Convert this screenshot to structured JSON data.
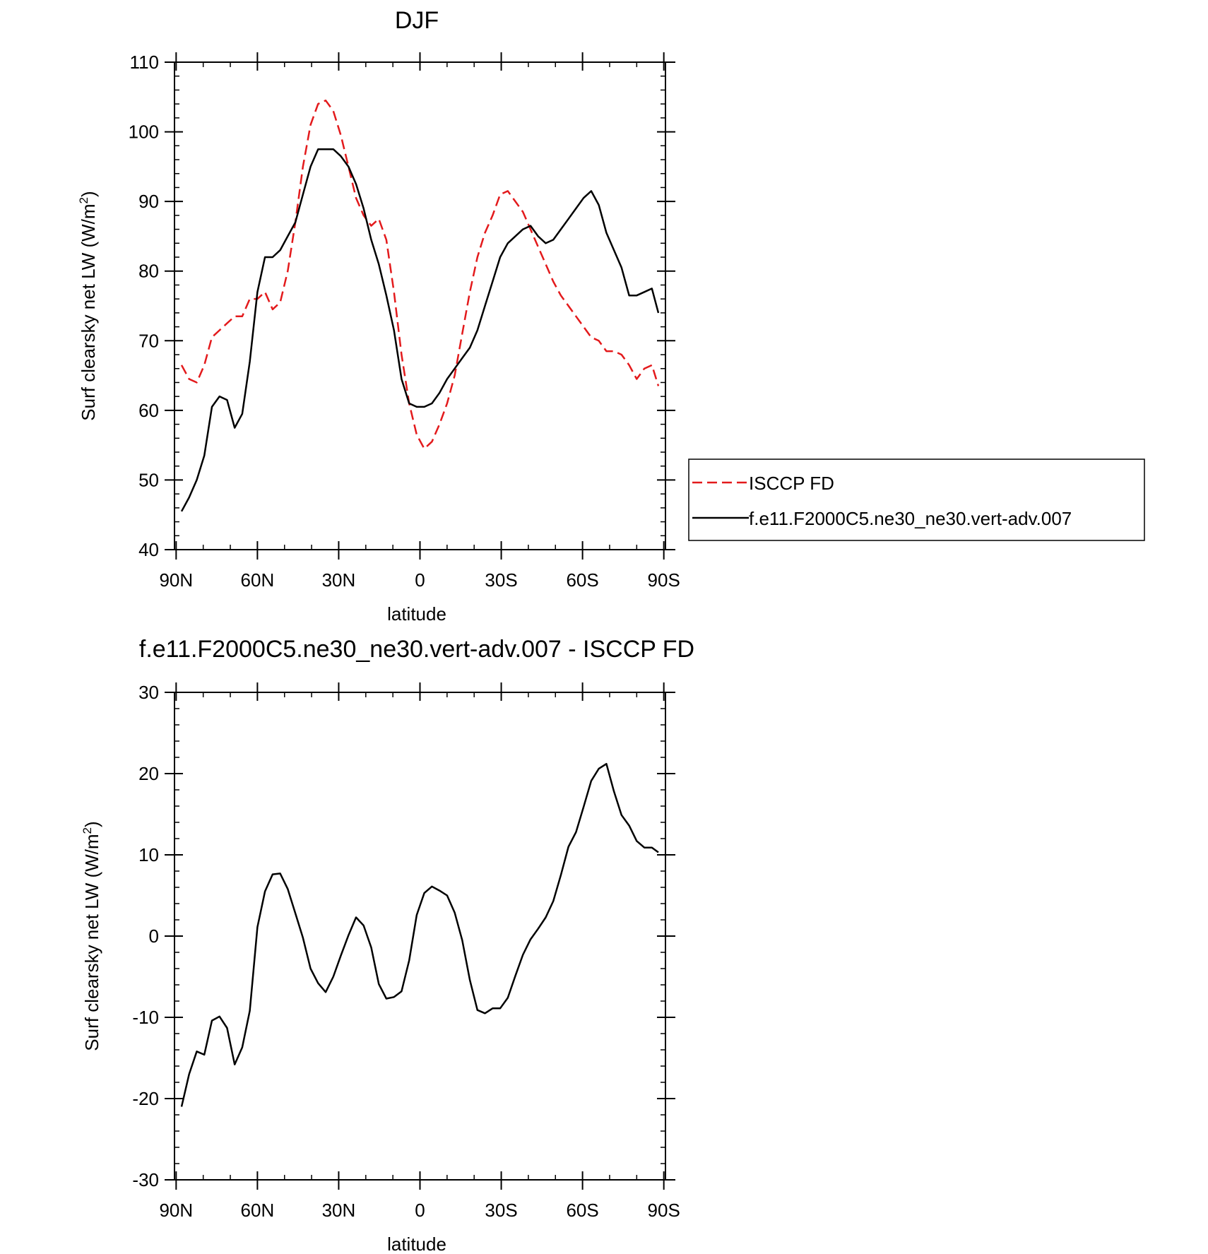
{
  "chart_data": [
    {
      "type": "line",
      "title": "DJF",
      "xlabel": "latitude",
      "ylabel": "Surf clearsky net LW (W/m",
      "ylabel_superscript": "2",
      "ylabel_suffix": ")",
      "xlim": [
        -88,
        88
      ],
      "ylim": [
        40,
        110
      ],
      "yticks": [
        40,
        50,
        60,
        70,
        80,
        90,
        100,
        110
      ],
      "xticks": [
        -90,
        -60,
        -30,
        0,
        30,
        60,
        90
      ],
      "xtick_labels": [
        "90N",
        "60N",
        "30N",
        "0",
        "30S",
        "60S",
        "90S"
      ],
      "legend": {
        "placement": "right",
        "entries": [
          "ISCCP FD",
          "f.e11.F2000C5.ne30_ne30.vert-adv.007"
        ]
      },
      "series": [
        {
          "name": "ISCCP FD",
          "color": "#e31a1c",
          "style": "dashed",
          "x": [
            -88,
            -85.2,
            -82.4,
            -79.6,
            -76.8,
            -74,
            -71.2,
            -68.4,
            -65.6,
            -62.8,
            -60,
            -57.2,
            -54.4,
            -51.6,
            -48.8,
            -46,
            -43.2,
            -40.4,
            -37.6,
            -34.8,
            -32,
            -29.2,
            -26.4,
            -23.6,
            -20.8,
            -18,
            -15.2,
            -12.4,
            -9.6,
            -6.8,
            -4,
            -1.2,
            1.6,
            4.4,
            7.2,
            10,
            12.8,
            15.6,
            18.4,
            21.2,
            24,
            26.8,
            29.6,
            32.4,
            35.2,
            38,
            40.8,
            43.6,
            46.4,
            49.2,
            52,
            54.8,
            57.6,
            60.4,
            63.2,
            66,
            68.8,
            71.6,
            74.4,
            77.2,
            80,
            82.8,
            85.6,
            88
          ],
          "y": [
            66.5,
            64.5,
            64,
            66.5,
            70.5,
            71.5,
            72.5,
            73.5,
            73.5,
            76,
            76,
            77,
            74.5,
            75.5,
            80,
            87,
            95,
            101,
            104,
            104.5,
            103,
            99.5,
            95,
            90.5,
            88,
            86.5,
            87.5,
            84.5,
            77,
            68,
            61,
            56.5,
            54.5,
            55.5,
            58,
            61,
            65,
            71,
            77,
            82,
            85.5,
            88,
            91,
            91.5,
            90,
            88.5,
            86,
            83.5,
            81,
            78.5,
            76.5,
            75,
            73.5,
            72,
            70.5,
            70,
            68.5,
            68.5,
            68,
            66.5,
            64.5,
            66,
            66.5,
            63.5
          ]
        },
        {
          "name": "f.e11.F2000C5.ne30_ne30.vert-adv.007",
          "color": "#000000",
          "style": "solid",
          "x": [
            -88,
            -85.2,
            -82.4,
            -79.6,
            -76.8,
            -74,
            -71.2,
            -68.4,
            -65.6,
            -62.8,
            -60,
            -57.2,
            -54.4,
            -51.6,
            -48.8,
            -46,
            -43.2,
            -40.4,
            -37.6,
            -34.8,
            -32,
            -29.2,
            -26.4,
            -23.6,
            -20.8,
            -18,
            -15.2,
            -12.4,
            -9.6,
            -6.8,
            -4,
            -1.2,
            1.6,
            4.4,
            7.2,
            10,
            12.8,
            15.6,
            18.4,
            21.2,
            24,
            26.8,
            29.6,
            32.4,
            35.2,
            38,
            40.8,
            43.6,
            46.4,
            49.2,
            52,
            54.8,
            57.6,
            60.4,
            63.2,
            66,
            68.8,
            71.6,
            74.4,
            77.2,
            80,
            82.8,
            85.6,
            88
          ],
          "y": [
            45.5,
            47.5,
            50,
            53.5,
            60.5,
            62,
            61.5,
            57.5,
            59.5,
            67,
            77,
            82,
            82,
            83,
            85,
            87,
            91,
            95,
            97.5,
            97.5,
            97.5,
            96.5,
            95,
            92.5,
            89,
            84.5,
            81,
            76.5,
            71.5,
            64.5,
            61,
            60.5,
            60.5,
            61,
            62.5,
            64.5,
            66,
            67.5,
            69,
            71.5,
            75,
            78.5,
            82,
            84,
            85,
            86,
            86.5,
            85,
            84,
            84.5,
            86,
            87.5,
            89,
            90.5,
            91.5,
            89.5,
            85.5,
            83,
            80.5,
            76.5,
            76.5,
            77,
            77.5,
            74
          ]
        }
      ]
    },
    {
      "type": "line",
      "title": "f.e11.F2000C5.ne30_ne30.vert-adv.007 - ISCCP FD",
      "xlabel": "latitude",
      "ylabel": "Surf clearsky net LW (W/m",
      "ylabel_superscript": "2",
      "ylabel_suffix": ")",
      "xlim": [
        -88,
        88
      ],
      "ylim": [
        -30,
        30
      ],
      "yticks": [
        -30,
        -20,
        -10,
        0,
        10,
        20,
        30
      ],
      "xticks": [
        -90,
        -60,
        -30,
        0,
        30,
        60,
        90
      ],
      "xtick_labels": [
        "90N",
        "60N",
        "30N",
        "0",
        "30S",
        "60S",
        "90S"
      ],
      "series": [
        {
          "name": "f.e11.F2000C5.ne30_ne30.vert-adv.007 - ISCCP FD",
          "color": "#000000",
          "style": "solid",
          "x": [
            -88,
            -85.2,
            -82.4,
            -79.6,
            -76.8,
            -74,
            -71.2,
            -68.4,
            -65.6,
            -62.8,
            -60,
            -57.2,
            -54.4,
            -51.6,
            -48.8,
            -46,
            -43.2,
            -40.4,
            -37.6,
            -34.8,
            -32,
            -29.2,
            -26.4,
            -23.6,
            -20.8,
            -18,
            -15.2,
            -12.4,
            -9.6,
            -6.8,
            -4,
            -1.2,
            1.6,
            4.4,
            7.2,
            10,
            12.8,
            15.6,
            18.4,
            21.2,
            24,
            26.8,
            29.6,
            32.4,
            35.2,
            38,
            40.8,
            43.6,
            46.4,
            49.2,
            52,
            54.8,
            57.6,
            60.4,
            63.2,
            66,
            68.8,
            71.6,
            74.4,
            77.2,
            80,
            82.8,
            85.6,
            88
          ],
          "y": [
            -21,
            -17,
            -14.2,
            -14.6,
            -10.4,
            -9.9,
            -11.3,
            -15.8,
            -13.7,
            -9.2,
            1.1,
            5.5,
            7.6,
            7.7,
            5.8,
            2.8,
            -0.2,
            -4,
            -5.8,
            -6.9,
            -5,
            -2.4,
            0.1,
            2.3,
            1.3,
            -1.4,
            -5.9,
            -7.7,
            -7.5,
            -6.8,
            -3,
            2.6,
            5.3,
            6.1,
            5.6,
            5,
            2.9,
            -0.5,
            -5.4,
            -9.1,
            -9.5,
            -8.9,
            -8.9,
            -7.6,
            -4.9,
            -2.3,
            -0.4,
            0.9,
            2.3,
            4.3,
            7.5,
            11,
            12.8,
            15.9,
            19.1,
            20.6,
            21.2,
            17.8,
            14.9,
            13.6,
            11.7,
            10.9,
            10.9,
            10.3
          ]
        }
      ]
    }
  ]
}
